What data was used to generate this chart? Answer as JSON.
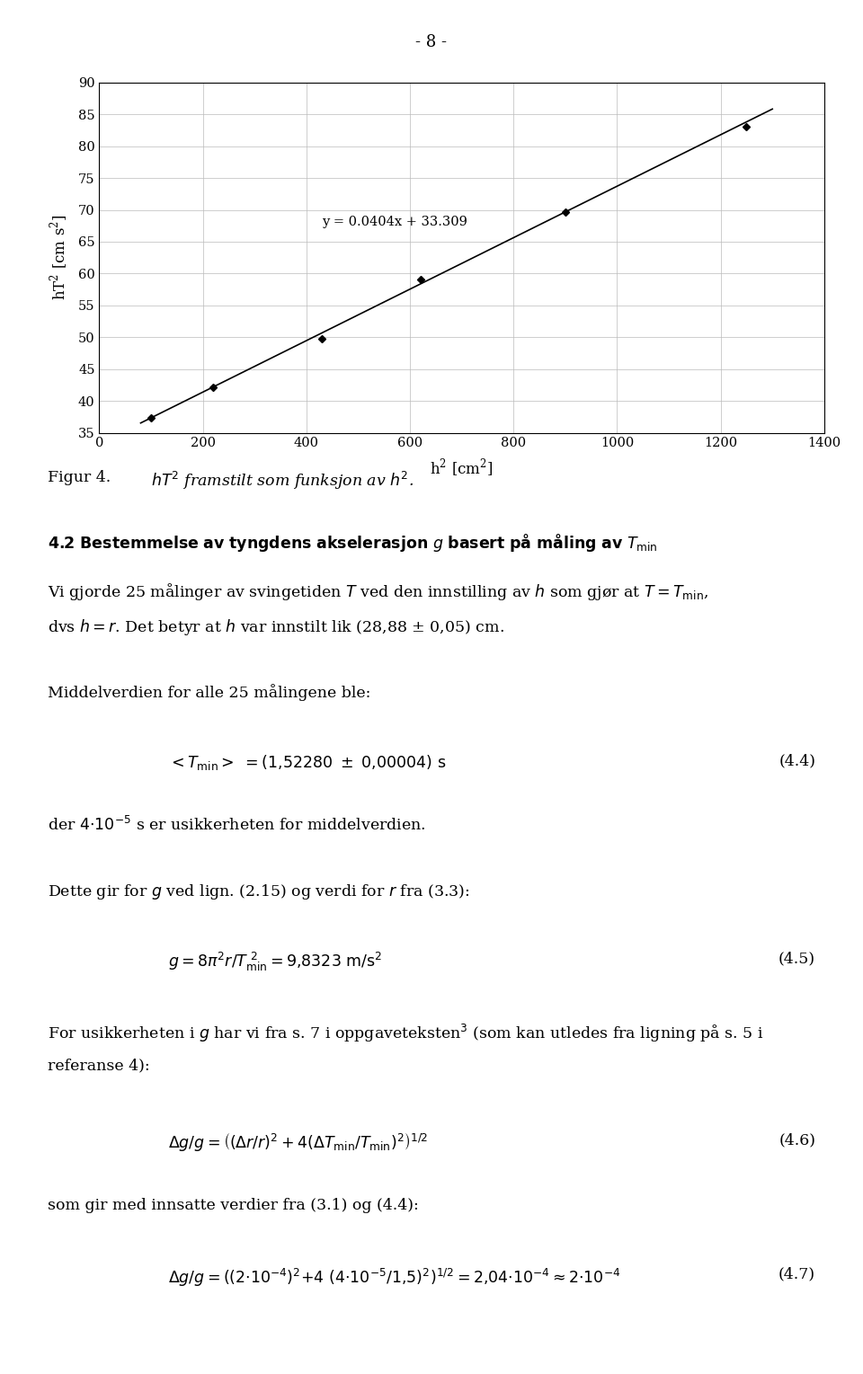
{
  "page_number": "- 8 -",
  "chart": {
    "x_data": [
      100,
      220,
      430,
      620,
      900,
      1250
    ],
    "y_data": [
      37.3,
      42.2,
      49.8,
      59.0,
      69.7,
      83.0
    ],
    "slope": 0.0404,
    "intercept": 33.309,
    "equation": "y = 0.0404x + 33.309",
    "x_label": "h² [cm²]",
    "y_label": "hT² [cm s²]",
    "x_ticks": [
      0,
      200,
      400,
      600,
      800,
      1000,
      1200,
      1400
    ],
    "y_ticks": [
      35,
      40,
      45,
      50,
      55,
      60,
      65,
      70,
      75,
      80,
      85,
      90
    ],
    "x_lim": [
      0,
      1400
    ],
    "y_lim": [
      35,
      90
    ]
  },
  "font_size_body": 12.5,
  "background_color": "#ffffff",
  "text_color": "#000000"
}
